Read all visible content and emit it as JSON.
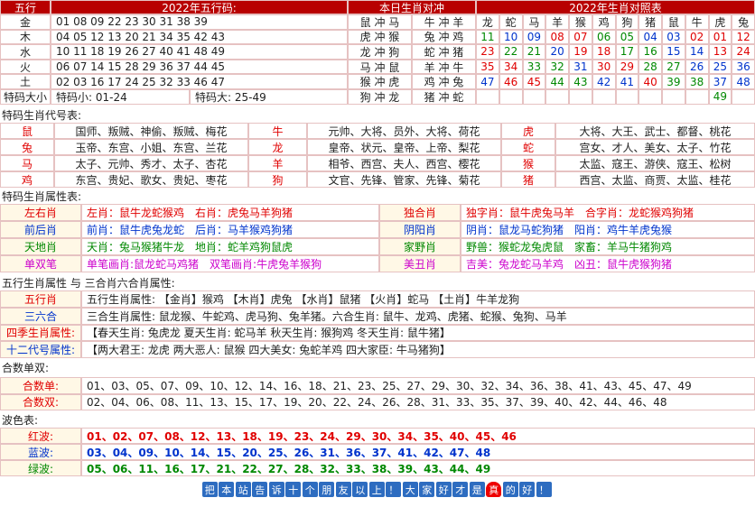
{
  "wuxing": {
    "headers": [
      "五行",
      "2022年五行码:",
      "本日生肖对冲",
      "2022年生肖对照表"
    ],
    "rows": [
      {
        "element": "金",
        "numbers": "01 08 09 22 23 30 31 38 39",
        "clash": [
          "鼠 冲 马",
          "牛 冲 羊"
        ]
      },
      {
        "element": "木",
        "numbers": "04 05 12 13 20 21 34 35 42 43",
        "clash": [
          "虎 冲 猴",
          "兔 冲 鸡"
        ]
      },
      {
        "element": "水",
        "numbers": "10 11 18 19 26 27 40 41 48 49",
        "clash": [
          "龙 冲 狗",
          "蛇 冲 猪"
        ]
      },
      {
        "element": "火",
        "numbers": "06 07 14 15 28 29 36 37 44 45",
        "clash": [
          "马 冲 鼠",
          "羊 冲 牛"
        ]
      },
      {
        "element": "土",
        "numbers": "02 03 16 17 24 25 32 33 46 47",
        "clash": [
          "猴 冲 虎",
          "鸡 冲 兔"
        ]
      }
    ],
    "size_row": {
      "label": "特码大小",
      "small": "特码小: 01-24",
      "big": "特码大: 25-49",
      "clash": [
        "狗 冲 龙",
        "猪 冲 蛇"
      ]
    },
    "zodiac_header": [
      "龙",
      "蛇",
      "马",
      "羊",
      "猴",
      "鸡",
      "狗",
      "猪",
      "鼠",
      "牛",
      "虎",
      "兔"
    ],
    "zodiac_numbers": [
      [
        "11",
        "10",
        "09",
        "08",
        "07",
        "06",
        "05",
        "04",
        "03",
        "02",
        "01",
        "12"
      ],
      [
        "23",
        "22",
        "21",
        "20",
        "19",
        "18",
        "17",
        "16",
        "15",
        "14",
        "13",
        "24"
      ],
      [
        "35",
        "34",
        "33",
        "32",
        "31",
        "30",
        "29",
        "28",
        "27",
        "26",
        "25",
        "36"
      ],
      [
        "47",
        "46",
        "45",
        "44",
        "43",
        "42",
        "41",
        "40",
        "39",
        "38",
        "37",
        "48"
      ],
      [
        null,
        null,
        null,
        null,
        null,
        null,
        null,
        null,
        null,
        null,
        "49",
        null
      ]
    ]
  },
  "codes": {
    "title": "特码生肖代号表:",
    "rows": [
      [
        "鼠",
        "国师、叛贼、神偷、叛贼、梅花",
        "牛",
        "元帅、大将、员外、大将、荷花",
        "虎",
        "大将、大王、武士、都督、桃花"
      ],
      [
        "兔",
        "玉帝、东宫、小姐、东宫、兰花",
        "龙",
        "皇帝、状元、皇帝、上帝、梨花",
        "蛇",
        "宫女、才人、美女、太子、竹花"
      ],
      [
        "马",
        "太子、元帅、秀才、太子、杏花",
        "羊",
        "相爷、西宫、夫人、西宫、樱花",
        "猴",
        "太监、寇王、游侠、寇王、松树"
      ],
      [
        "鸡",
        "东宫、贵妃、歌女、贵妃、枣花",
        "狗",
        "文官、先锋、管家、先锋、菊花",
        "猪",
        "西宫、太监、商贾、太监、桂花"
      ]
    ]
  },
  "attributes": {
    "title": "特码生肖属性表:",
    "rows": [
      [
        "左右肖",
        "左肖：鼠牛龙蛇猴鸡　右肖：虎兔马羊狗猪",
        "独合肖",
        "独字肖：鼠牛虎兔马羊　合字肖：龙蛇猴鸡狗猪"
      ],
      [
        "前后肖",
        "前肖：鼠牛虎兔龙蛇　后肖：马羊猴鸡狗猪",
        "阴阳肖",
        "阴肖：鼠龙马蛇狗猪　阳肖：鸡牛羊虎兔猴"
      ],
      [
        "天地肖",
        "天肖：兔马猴猪牛龙　地肖：蛇羊鸡狗鼠虎",
        "家野肖",
        "野兽：猴蛇龙兔虎鼠　家畜：羊马牛猪狗鸡"
      ],
      [
        "单双笔",
        "单笔画肖:鼠龙蛇马鸡猪　双笔画肖:牛虎兔羊猴狗",
        "美丑肖",
        "吉美：兔龙蛇马羊鸡　凶丑：鼠牛虎猴狗猪"
      ]
    ]
  },
  "elements": {
    "title": "五行生肖属性 与 三合肖六合肖属性:",
    "rows": [
      [
        "五行肖",
        "五行生肖属性: 【金肖】猴鸡 【木肖】虎兔 【水肖】鼠猪 【火肖】蛇马 【土肖】牛羊龙狗"
      ],
      [
        "三六合",
        "三合生肖属性: 鼠龙猴、牛蛇鸡、虎马狗、兔羊猪。六合生肖: 鼠牛、龙鸡、虎猪、蛇猴、兔狗、马羊"
      ],
      [
        "四季生肖属性:",
        "【春天生肖: 兔虎龙 夏天生肖: 蛇马羊 秋天生肖: 猴狗鸡 冬天生肖: 鼠牛猪】"
      ],
      [
        "十二代号属性:",
        "【两大君王: 龙虎 两大恶人: 鼠猴 四大美女: 兔蛇羊鸡 四大家臣: 牛马猪狗】"
      ]
    ]
  },
  "sums": {
    "title": "合数单双:",
    "rows": [
      [
        "合数单:",
        "01、03、05、07、09、10、12、14、16、18、21、23、25、27、29、30、32、34、36、38、41、43、45、47、49"
      ],
      [
        "合数双:",
        "02、04、06、08、11、13、15、17、19、20、22、24、26、28、31、33、35、37、39、40、42、44、46、48"
      ]
    ]
  },
  "waves": {
    "title": "波色表:",
    "rows": [
      [
        "红波:",
        "01、02、07、08、12、13、18、19、23、24、29、30、34、35、40、45、46"
      ],
      [
        "蓝波:",
        "03、04、09、10、14、15、20、25、26、31、36、37、41、42、47、48"
      ],
      [
        "绿波:",
        "05、06、11、16、17、21、22、27、28、32、33、38、39、43、44、49"
      ]
    ]
  },
  "footer": [
    "把",
    "本",
    "站",
    "告",
    "诉",
    "十",
    "个",
    "朋",
    "友",
    "以",
    "上",
    "！",
    "大",
    "家",
    "好",
    "才",
    "是",
    "真",
    "的",
    "好",
    "！"
  ]
}
